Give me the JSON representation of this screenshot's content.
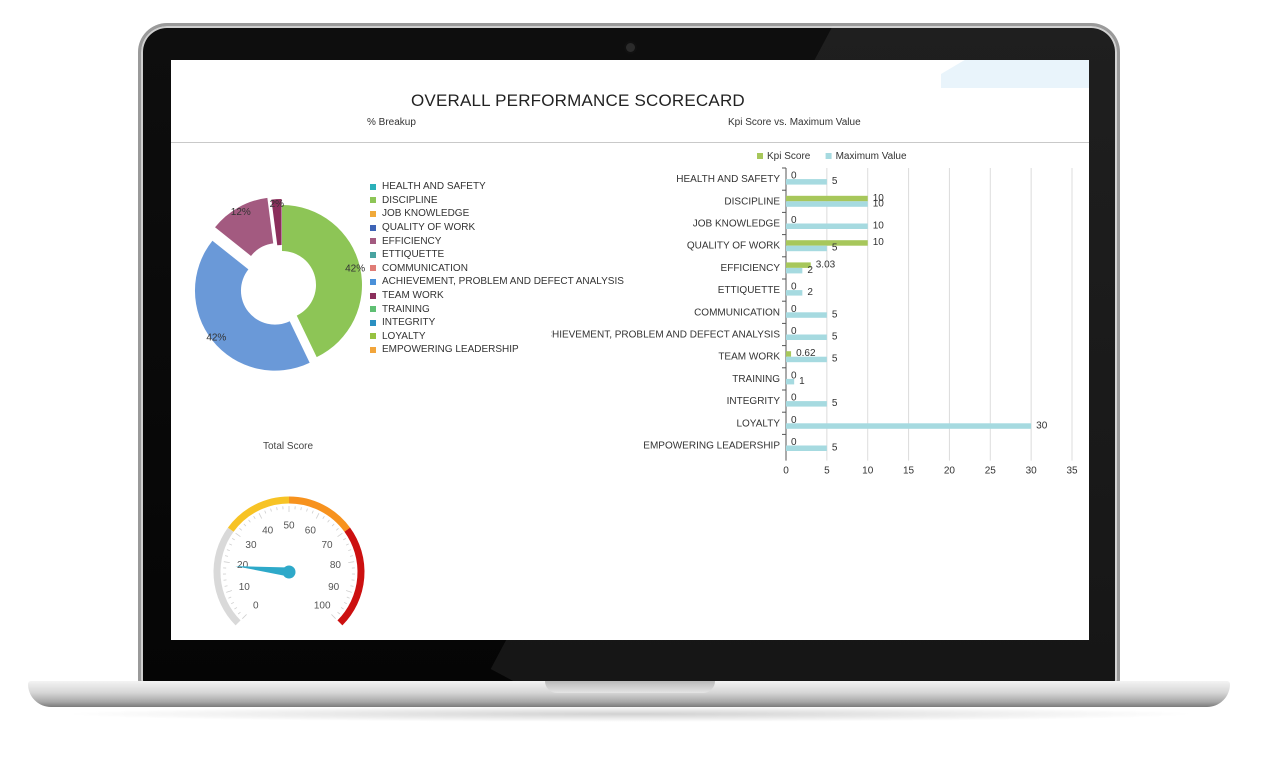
{
  "dashboard": {
    "title": "OVERALL PERFORMANCE SCORECARD",
    "pie_title": "% Breakup",
    "bar_title": "Kpi Score vs. Maximum Value",
    "gauge_title": "Total Score"
  },
  "colors": {
    "kpi": "#a7c75b",
    "max": "#a6dae0",
    "pie_green": "#8dc556",
    "pie_blue": "#6a99d8",
    "pie_purple": "#a35a80",
    "pie_darkpurple": "#8b2f5c",
    "needle": "#2ea9c9"
  },
  "chart_data": [
    {
      "type": "pie",
      "title": "% Breakup",
      "legend": [
        {
          "label": "HEALTH AND SAFETY",
          "color": "#2ab0b9"
        },
        {
          "label": "DISCIPLINE",
          "color": "#8dc556"
        },
        {
          "label": "JOB KNOWLEDGE",
          "color": "#f0a93a"
        },
        {
          "label": "QUALITY OF WORK",
          "color": "#3e64b6"
        },
        {
          "label": "EFFICIENCY",
          "color": "#a35a80"
        },
        {
          "label": "ETTIQUETTE",
          "color": "#48a3a0"
        },
        {
          "label": "COMMUNICATION",
          "color": "#e07c76"
        },
        {
          "label": "ACHIEVEMENT, PROBLEM AND DEFECT ANALYSIS",
          "color": "#4a90d9"
        },
        {
          "label": "TEAM WORK",
          "color": "#8b2f5c"
        },
        {
          "label": "TRAINING",
          "color": "#5fbf73"
        },
        {
          "label": "INTEGRITY",
          "color": "#2b8fc1"
        },
        {
          "label": "LOYALTY",
          "color": "#97c241"
        },
        {
          "label": "EMPOWERING LEADERSHIP",
          "color": "#f2a53b"
        }
      ],
      "slices": [
        {
          "label": "DISCIPLINE",
          "value": 42,
          "label_text": "42%",
          "color": "#8dc556"
        },
        {
          "label": "QUALITY OF WORK",
          "value": 42,
          "label_text": "42%",
          "color": "#6a99d8"
        },
        {
          "label": "EFFICIENCY",
          "value": 12,
          "label_text": "12%",
          "color": "#a35a80"
        },
        {
          "label": "TEAM WORK",
          "value": 2,
          "label_text": "2%",
          "color": "#8b2f5c"
        }
      ]
    },
    {
      "type": "bar",
      "title": "Kpi Score vs. Maximum Value",
      "orientation": "horizontal",
      "categories": [
        "HEALTH AND SAFETY",
        "DISCIPLINE",
        "JOB KNOWLEDGE",
        "QUALITY OF WORK",
        "EFFICIENCY",
        "ETTIQUETTE",
        "COMMUNICATION",
        "ACHIEVEMENT, PROBLEM AND DEFECT ANALYSIS",
        "TEAM WORK",
        "TRAINING",
        "INTEGRITY",
        "LOYALTY",
        "EMPOWERING LEADERSHIP"
      ],
      "series": [
        {
          "name": "Kpi Score",
          "color": "#a7c75b",
          "values": [
            0,
            10,
            0,
            10,
            3.03,
            0,
            0,
            0,
            0.62,
            0,
            0,
            0,
            0
          ],
          "labels": [
            "0",
            "10",
            "0",
            "10",
            "3.03",
            "0",
            "0",
            "0",
            "0.62",
            "0",
            "0",
            "0",
            "0"
          ]
        },
        {
          "name": "Maximum Value",
          "color": "#a6dae0",
          "values": [
            5,
            10,
            10,
            5,
            2,
            2,
            5,
            5,
            5,
            1,
            5,
            30,
            5
          ],
          "labels": [
            "5",
            "10",
            "10",
            "5",
            "2",
            "2",
            "5",
            "5",
            "5",
            "1",
            "5",
            "30",
            "5"
          ]
        }
      ],
      "xlim": [
        0,
        35
      ],
      "xticks": [
        "0",
        "5",
        "10",
        "15",
        "20",
        "25",
        "30",
        "35"
      ],
      "grid": true,
      "legend_position": "top-center"
    },
    {
      "type": "gauge",
      "title": "Total Score",
      "min": 0,
      "max": 100,
      "value": 19,
      "tick_labels": [
        "0",
        "10",
        "20",
        "30",
        "40",
        "50",
        "60",
        "70",
        "80",
        "90",
        "100"
      ],
      "bands": [
        {
          "from": 0,
          "to": 30,
          "color": "#d9d9d9"
        },
        {
          "from": 30,
          "to": 50,
          "color": "#f7c325"
        },
        {
          "from": 50,
          "to": 70,
          "color": "#f7921e"
        },
        {
          "from": 70,
          "to": 100,
          "color": "#cc1010"
        }
      ]
    }
  ]
}
